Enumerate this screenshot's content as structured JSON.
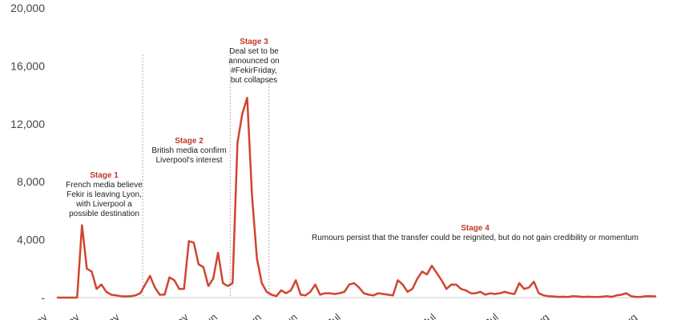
{
  "chart_data": {
    "type": "line",
    "title": "",
    "xlabel": "",
    "ylabel": "",
    "ylim": [
      0,
      20000
    ],
    "yticks": [
      "20,000",
      "16,000",
      "12,000",
      "8,000",
      "4,000",
      "-"
    ],
    "ytick_values": [
      20000,
      16000,
      12000,
      8000,
      4000,
      0
    ],
    "xtick_labels": [
      "May",
      "May",
      "May",
      "May",
      "Jun",
      "Jun",
      "Jun",
      "Jul",
      "Jul",
      "Jul",
      "Aug",
      "Aug"
    ],
    "grid": false,
    "colors": {
      "line": "#d0452f",
      "annotation": "#c0392b",
      "divider": "#b0b0b0"
    },
    "series": [
      {
        "values": [
          0,
          0,
          0,
          0,
          0,
          5000,
          2000,
          1800,
          600,
          900,
          400,
          200,
          150,
          100,
          80,
          100,
          150,
          300,
          900,
          1500,
          700,
          200,
          200,
          1400,
          1200,
          600,
          600,
          3900,
          3800,
          2300,
          2100,
          800,
          1300,
          3100,
          1000,
          800,
          1000,
          10700,
          12700,
          13800,
          7000,
          2700,
          1000,
          400,
          200,
          100,
          500,
          300,
          500,
          1200,
          200,
          150,
          400,
          900,
          200,
          300,
          300,
          250,
          300,
          400,
          900,
          1000,
          700,
          300,
          200,
          150,
          300,
          250,
          200,
          150,
          1200,
          900,
          400,
          600,
          1300,
          1800,
          1600,
          2200,
          1700,
          1200,
          600,
          900,
          900,
          600,
          500,
          300,
          300,
          400,
          200,
          300,
          250,
          300,
          400,
          300,
          250,
          1000,
          600,
          700,
          1100,
          300,
          150,
          100,
          80,
          50,
          60,
          40,
          100,
          80,
          50,
          60,
          50,
          40,
          60,
          100,
          50,
          150,
          200,
          300,
          100,
          50,
          50,
          100,
          100,
          80
        ]
      }
    ],
    "dividers_after_index": [
      17,
      35,
      43
    ],
    "annotations": [
      {
        "title": "Stage 1",
        "lines": [
          "French media believe",
          "Fekir is leaving Lyon,",
          "with Liverpool a",
          "possible destination"
        ]
      },
      {
        "title": "Stage 2",
        "lines": [
          "British media confirm",
          "Liverpool's interest"
        ]
      },
      {
        "title": "Stage 3",
        "lines": [
          "Deal set to be",
          "announced on",
          "#FekirFriday,",
          "but collapses"
        ]
      },
      {
        "title": "Stage 4",
        "lines": [
          "Rumours persist that the transfer could be reignited, but do not gain credibility or momentum"
        ]
      }
    ]
  }
}
